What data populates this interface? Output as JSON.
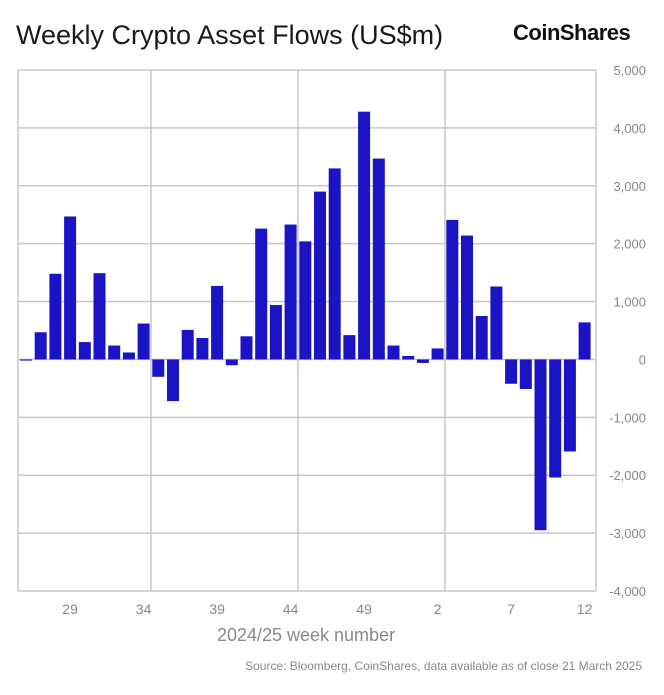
{
  "title": "Weekly Crypto Asset Flows (US$m)",
  "logo": "CoinShares",
  "source": "Source: Bloomberg, CoinShares, data available as of close 21 March 2025",
  "chart_data": {
    "type": "bar",
    "title": "Weekly Crypto Asset Flows (US$m)",
    "xlabel": "2024/25 week number",
    "ylabel": "",
    "ylim": [
      -4000,
      5000
    ],
    "yticks": [
      -4000,
      -3000,
      -2000,
      -1000,
      0,
      1000,
      2000,
      3000,
      4000,
      5000
    ],
    "ytick_labels": [
      "-4,000",
      "-3,000",
      "-2,000",
      "-1,000",
      "0",
      "1,000",
      "2,000",
      "3,000",
      "4,000",
      "5,000"
    ],
    "xtick_labels": [
      "29",
      "34",
      "39",
      "44",
      "49",
      "2",
      "7",
      "12"
    ],
    "y_axis_side": "right",
    "grid": true,
    "bar_color": "#1a14c4",
    "categories": [
      "26",
      "27",
      "28",
      "29",
      "30",
      "31",
      "32",
      "33",
      "34",
      "35",
      "36",
      "37",
      "38",
      "39",
      "40",
      "41",
      "42",
      "43",
      "44",
      "45",
      "46",
      "47",
      "48",
      "49",
      "50",
      "51",
      "52",
      "1",
      "2",
      "3",
      "4",
      "5",
      "6",
      "7",
      "8",
      "9",
      "10",
      "11",
      "12"
    ],
    "values": [
      -20,
      470,
      1480,
      2470,
      300,
      1490,
      240,
      120,
      620,
      -300,
      -720,
      510,
      370,
      1270,
      -100,
      400,
      2260,
      940,
      2330,
      2040,
      2900,
      3300,
      420,
      4280,
      3470,
      240,
      60,
      -60,
      190,
      2410,
      2140,
      750,
      1260,
      -420,
      -510,
      -2950,
      -2040,
      -1590,
      640
    ]
  }
}
